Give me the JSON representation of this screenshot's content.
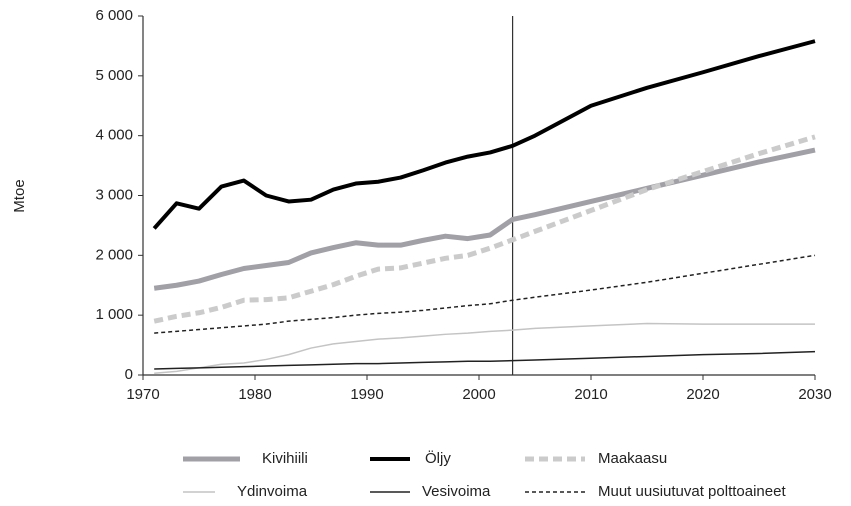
{
  "chart_data": {
    "type": "line",
    "y_label": "Mtoe",
    "x": [
      1971,
      1973,
      1975,
      1977,
      1979,
      1981,
      1983,
      1985,
      1987,
      1989,
      1991,
      1993,
      1995,
      1997,
      1999,
      2001,
      2003,
      2005,
      2010,
      2015,
      2020,
      2025,
      2030
    ],
    "xlim": [
      1970,
      2030
    ],
    "xticks": [
      1970,
      1980,
      1990,
      2000,
      2010,
      2020,
      2030
    ],
    "ylim": [
      0,
      6000
    ],
    "yticks": [
      0,
      {
        "value": 1000,
        "label": "1 000"
      },
      {
        "value": 2000,
        "label": "2 000"
      },
      {
        "value": 3000,
        "label": "3 000"
      },
      {
        "value": 4000,
        "label": "4 000"
      },
      {
        "value": 5000,
        "label": "5 000"
      },
      {
        "value": 6000,
        "label": "6 000"
      }
    ],
    "vline": 2003,
    "series": [
      {
        "name": "Kivihiili",
        "color": "#a0a0a6",
        "width": 5,
        "style": "solid",
        "values": [
          1450,
          1500,
          1570,
          1680,
          1780,
          1830,
          1880,
          2040,
          2130,
          2210,
          2170,
          2170,
          2250,
          2320,
          2280,
          2340,
          2600,
          2680,
          2900,
          3120,
          3340,
          3560,
          3760
        ]
      },
      {
        "name": "Öljy",
        "color": "#000000",
        "width": 4,
        "style": "solid",
        "values": [
          2450,
          2870,
          2780,
          3150,
          3250,
          3000,
          2900,
          2930,
          3100,
          3200,
          3230,
          3300,
          3420,
          3550,
          3650,
          3720,
          3830,
          4000,
          4500,
          4800,
          5060,
          5330,
          5580
        ]
      },
      {
        "name": "Maakaasu",
        "color": "#cbcbcb",
        "width": 5,
        "style": "dashed",
        "values": [
          900,
          980,
          1040,
          1130,
          1250,
          1260,
          1290,
          1400,
          1510,
          1650,
          1770,
          1790,
          1870,
          1950,
          2000,
          2120,
          2260,
          2400,
          2750,
          3100,
          3400,
          3700,
          3980
        ]
      },
      {
        "name": "Ydinvoima",
        "color": "#c4c4c4",
        "width": 1.5,
        "style": "solid",
        "values": [
          30,
          60,
          120,
          180,
          200,
          260,
          340,
          450,
          520,
          560,
          600,
          620,
          650,
          680,
          700,
          730,
          750,
          780,
          820,
          860,
          850,
          850,
          850
        ]
      },
      {
        "name": "Vesivoima",
        "color": "#222222",
        "width": 1.5,
        "style": "solid",
        "values": [
          100,
          110,
          120,
          130,
          140,
          150,
          160,
          170,
          180,
          190,
          190,
          200,
          210,
          220,
          230,
          230,
          240,
          250,
          280,
          310,
          340,
          360,
          390
        ]
      },
      {
        "name": "Muut uusiutuvat polttoaineet",
        "color": "#222222",
        "width": 1.5,
        "style": "dashed",
        "values": [
          700,
          730,
          760,
          790,
          820,
          850,
          900,
          930,
          960,
          1000,
          1030,
          1050,
          1080,
          1120,
          1160,
          1190,
          1250,
          1300,
          1420,
          1550,
          1700,
          1850,
          2000
        ]
      }
    ]
  }
}
